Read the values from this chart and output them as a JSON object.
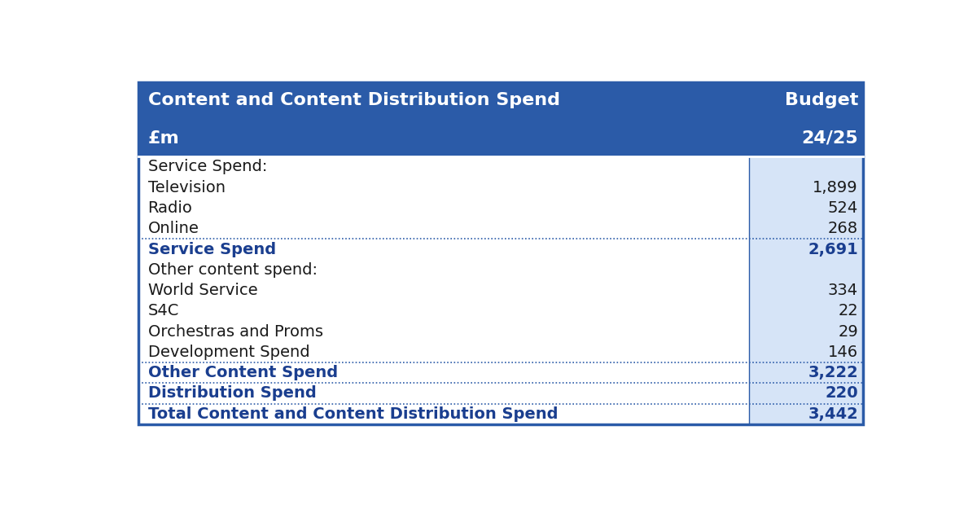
{
  "header_bg_color": "#2B5BA8",
  "header_text_color": "#FFFFFF",
  "value_col_bg": "#D6E4F7",
  "bold_row_color": "#1A3E8F",
  "normal_text_color": "#1a1a1a",
  "dotted_line_color": "#2B5BA8",
  "outer_border_color": "#2B5BA8",
  "rows": [
    {
      "label": "Service Spend:",
      "value": "",
      "bold": false,
      "has_bottom_border": false
    },
    {
      "label": "Television",
      "value": "1,899",
      "bold": false,
      "has_bottom_border": false
    },
    {
      "label": "Radio",
      "value": "524",
      "bold": false,
      "has_bottom_border": false
    },
    {
      "label": "Online",
      "value": "268",
      "bold": false,
      "has_bottom_border": true
    },
    {
      "label": "Service Spend",
      "value": "2,691",
      "bold": true,
      "has_bottom_border": false
    },
    {
      "label": "Other content spend:",
      "value": "",
      "bold": false,
      "has_bottom_border": false
    },
    {
      "label": "World Service",
      "value": "334",
      "bold": false,
      "has_bottom_border": false
    },
    {
      "label": "S4C",
      "value": "22",
      "bold": false,
      "has_bottom_border": false
    },
    {
      "label": "Orchestras and Proms",
      "value": "29",
      "bold": false,
      "has_bottom_border": false
    },
    {
      "label": "Development Spend",
      "value": "146",
      "bold": false,
      "has_bottom_border": true
    },
    {
      "label": "Other Content Spend",
      "value": "3,222",
      "bold": true,
      "has_bottom_border": true
    },
    {
      "label": "Distribution Spend",
      "value": "220",
      "bold": true,
      "has_bottom_border": true
    },
    {
      "label": "Total Content and Content Distribution Spend",
      "value": "3,442",
      "bold": true,
      "has_bottom_border": false
    }
  ],
  "fig_width": 12.0,
  "fig_height": 6.2,
  "dpi": 100
}
